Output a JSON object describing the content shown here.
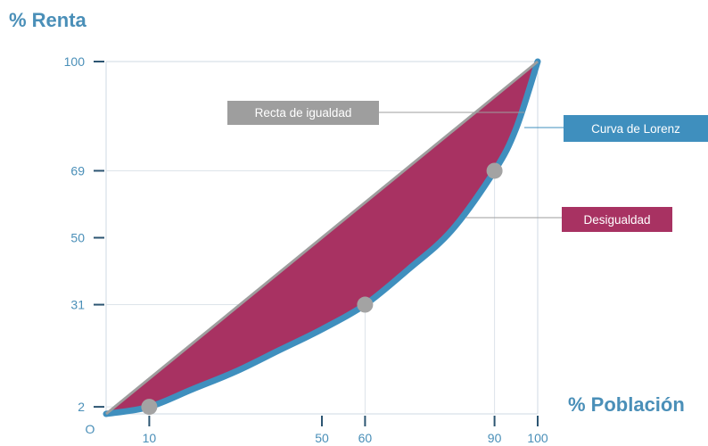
{
  "chart_data": {
    "type": "area",
    "ylabel": "% Renta",
    "xlabel": "% Población",
    "xlim": [
      0,
      100
    ],
    "ylim": [
      0,
      100
    ],
    "origin_label": "O",
    "x_ticks": [
      "10",
      "50",
      "60",
      "90",
      "100"
    ],
    "y_ticks": [
      "2",
      "31",
      "50",
      "69",
      "100"
    ],
    "series": [
      {
        "name": "Recta de igualdad",
        "x": [
          0,
          100
        ],
        "y": [
          0,
          100
        ],
        "color": "#9e9e9e"
      },
      {
        "name": "Curva de Lorenz",
        "x": [
          0,
          10,
          20,
          30,
          40,
          50,
          60,
          70,
          80,
          90,
          95,
          100
        ],
        "y": [
          0,
          2,
          7,
          12,
          18,
          24,
          31,
          41,
          52,
          69,
          81,
          100
        ],
        "color": "#3f8fbe"
      }
    ],
    "highlight_points": [
      {
        "x": 10,
        "y": 2
      },
      {
        "x": 60,
        "y": 31
      },
      {
        "x": 90,
        "y": 69
      }
    ],
    "shaded_region": {
      "label": "Desigualdad",
      "color": "#a83262"
    },
    "annotations": {
      "equality": "Recta de igualdad",
      "lorenz": "Curva de Lorenz",
      "inequality": "Desigualdad"
    },
    "grid": false
  }
}
